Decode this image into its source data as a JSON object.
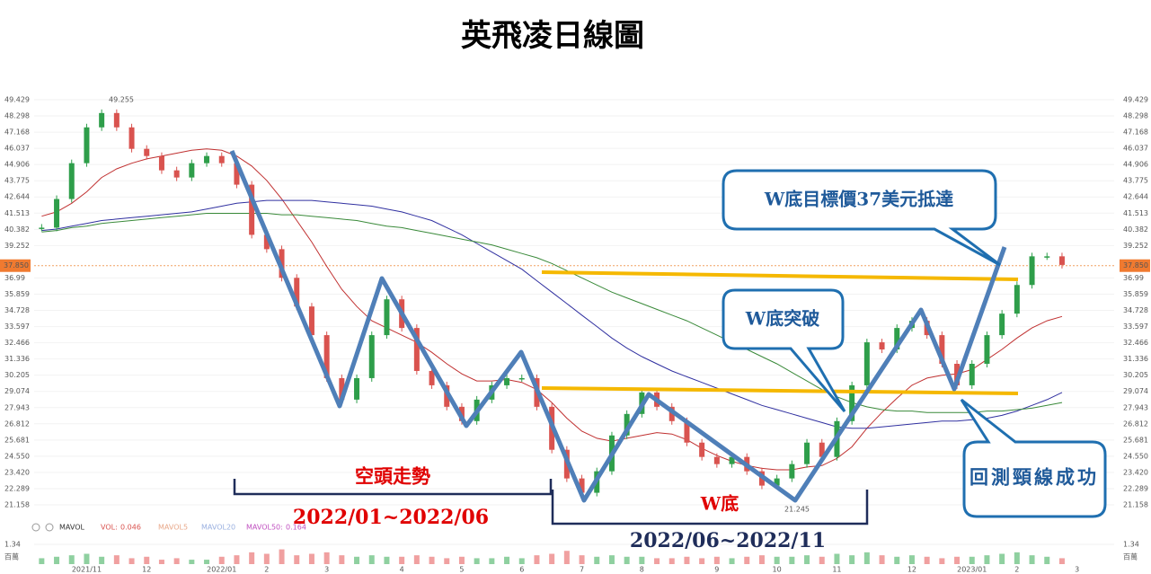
{
  "chart_data": {
    "type": "candlestick",
    "title": "英飛凌日線圖",
    "categories": [
      null,
      null,
      null,
      "2021/11",
      null,
      null,
      null,
      "12",
      null,
      null,
      null,
      null,
      "2022/01",
      null,
      null,
      "2",
      null,
      null,
      null,
      "3",
      null,
      null,
      null,
      null,
      "4",
      null,
      null,
      null,
      "5",
      null,
      null,
      null,
      "6",
      null,
      null,
      null,
      "7",
      null,
      null,
      null,
      "8",
      null,
      null,
      null,
      null,
      "9",
      null,
      null,
      null,
      "10",
      null,
      null,
      null,
      "11",
      null,
      null,
      null,
      null,
      "12",
      null,
      null,
      null,
      "2023/01",
      null,
      null,
      "2",
      null,
      null,
      null,
      "3"
    ],
    "up_color": "#2e9e4a",
    "down_color": "#d9534f",
    "series": [
      {
        "color": "#2e9e4a",
        "values": [
          40.5,
          42.5,
          45,
          47.5,
          48.5,
          47.5,
          46,
          45.5,
          44.5,
          44,
          45,
          45.5,
          45,
          43.5,
          40,
          39,
          37,
          35,
          33,
          30,
          28.5,
          30,
          33,
          35.5,
          33.5,
          30.5,
          29.5,
          28,
          27,
          28.5,
          29.5,
          30,
          30,
          28,
          25,
          23,
          22,
          23.5,
          26,
          27.5,
          29,
          28,
          27,
          25.5,
          24.5,
          24,
          24.5,
          23.5,
          22.5,
          23,
          24,
          25.5,
          24.5,
          27,
          29.5,
          32.5,
          32,
          33.5,
          34,
          33,
          31,
          29.5,
          31,
          33,
          34.5,
          36.5,
          38.5,
          38.5,
          37.9,
          null
        ]
      },
      {
        "color": "#c03030",
        "values": [
          41.3,
          41.6,
          42.2,
          43,
          44,
          44.6,
          45,
          45.3,
          45.5,
          45.7,
          45.9,
          46,
          45.9,
          45.5,
          44.8,
          43.8,
          42.5,
          41,
          39.5,
          37.8,
          36.2,
          35,
          34,
          33.5,
          33,
          32.5,
          31.8,
          31,
          30.3,
          29.8,
          29.8,
          29.9,
          29.7,
          29.2,
          28.3,
          27.2,
          26.3,
          25.8,
          25.6,
          25.8,
          26,
          26.2,
          26.1,
          25.7,
          25.1,
          24.6,
          24.2,
          23.9,
          23.7,
          23.6,
          23.6,
          23.8,
          23.9,
          24.4,
          25.2,
          26.5,
          27.6,
          28.6,
          29.5,
          30,
          30.2,
          30.3,
          30.6,
          31.3,
          32,
          32.8,
          33.5,
          34,
          34.3,
          null
        ]
      },
      {
        "color": "#3030a0",
        "values": [
          40.3,
          40.4,
          40.6,
          40.8,
          41,
          41.1,
          41.2,
          41.3,
          41.4,
          41.5,
          41.6,
          41.8,
          42,
          42.2,
          42.3,
          42.4,
          42.4,
          42.4,
          42.4,
          42.3,
          42.2,
          42.1,
          42,
          41.8,
          41.6,
          41.3,
          41,
          40.5,
          40,
          39.4,
          38.8,
          38.2,
          37.6,
          36.8,
          36,
          35.2,
          34.4,
          33.6,
          32.8,
          32.1,
          31.5,
          31,
          30.5,
          30.1,
          29.7,
          29.3,
          28.9,
          28.5,
          28.1,
          27.8,
          27.5,
          27.2,
          26.9,
          26.6,
          26.5,
          26.5,
          26.6,
          26.7,
          26.8,
          26.9,
          27,
          27,
          27.1,
          27.2,
          27.4,
          27.7,
          28.1,
          28.5,
          29,
          null
        ]
      },
      {
        "color": "#3a8a3a",
        "values": [
          40.2,
          40.3,
          40.5,
          40.6,
          40.8,
          40.9,
          41,
          41.1,
          41.2,
          41.3,
          41.4,
          41.5,
          41.5,
          41.5,
          41.5,
          41.5,
          41.4,
          41.4,
          41.3,
          41.2,
          41.1,
          41,
          40.8,
          40.6,
          40.5,
          40.3,
          40.1,
          39.9,
          39.7,
          39.5,
          39.3,
          39,
          38.7,
          38.4,
          38,
          37.5,
          37,
          36.5,
          36,
          35.6,
          35.2,
          34.8,
          34.4,
          34,
          33.5,
          33,
          32.5,
          32,
          31.5,
          31,
          30.4,
          29.8,
          29.2,
          28.7,
          28.3,
          28,
          27.8,
          27.7,
          27.7,
          27.6,
          27.6,
          27.6,
          27.6,
          27.7,
          27.7,
          27.8,
          27.9,
          28.1,
          28.3,
          null
        ]
      }
    ],
    "ylim": [
      21.158,
      49.429
    ],
    "yticks": [
      49.429,
      48.298,
      47.168,
      46.037,
      44.906,
      43.775,
      42.644,
      41.513,
      40.382,
      39.252,
      36.99,
      35.859,
      34.728,
      33.597,
      32.466,
      31.336,
      30.205,
      29.074,
      27.943,
      26.812,
      25.681,
      {
        "value": 24.55,
        "label": "24.550"
      },
      {
        "value": 23.42,
        "label": "23.420"
      },
      22.289,
      21.158
    ],
    "last_price": {
      "value": 37.85,
      "label": "37.850"
    },
    "high": 49.255,
    "low": 21.245,
    "volume": {
      "values": [
        0.4,
        0.5,
        0.6,
        0.7,
        0.5,
        0.6,
        0.4,
        0.5,
        0.3,
        0.4,
        0.3,
        0.3,
        0.5,
        0.6,
        0.8,
        0.7,
        1.0,
        0.6,
        0.7,
        0.8,
        0.6,
        0.5,
        0.6,
        0.5,
        0.5,
        0.6,
        0.5,
        0.4,
        0.5,
        0.4,
        0.4,
        0.5,
        0.4,
        0.6,
        0.7,
        0.9,
        0.6,
        0.5,
        0.6,
        0.5,
        0.5,
        0.4,
        0.4,
        0.5,
        0.4,
        0.5,
        0.4,
        0.5,
        0.6,
        0.5,
        0.5,
        0.6,
        0.5,
        0.7,
        0.6,
        0.8,
        0.6,
        0.5,
        0.6,
        0.5,
        0.4,
        0.5,
        0.5,
        0.6,
        0.7,
        0.8,
        0.6,
        0.5,
        0.4,
        null
      ],
      "ylim": [
        0,
        1.34
      ],
      "yticks": [
        1.34
      ],
      "unit": "百萬"
    },
    "legend_row": [
      "MAVOL",
      "VOL:",
      "0.046",
      "MAVOL5",
      "MAVOL20",
      "MAVOL50:",
      "0.164"
    ],
    "annotations": {
      "target": "W底目標價37美元抵達",
      "breakout": "W底突破",
      "retest": "回測頸線成功",
      "bear_trend": "空頭走勢",
      "bear_period": "2022/01~2022/06",
      "w_bottom": "W底",
      "w_period": "2022/06~2022/11"
    }
  }
}
